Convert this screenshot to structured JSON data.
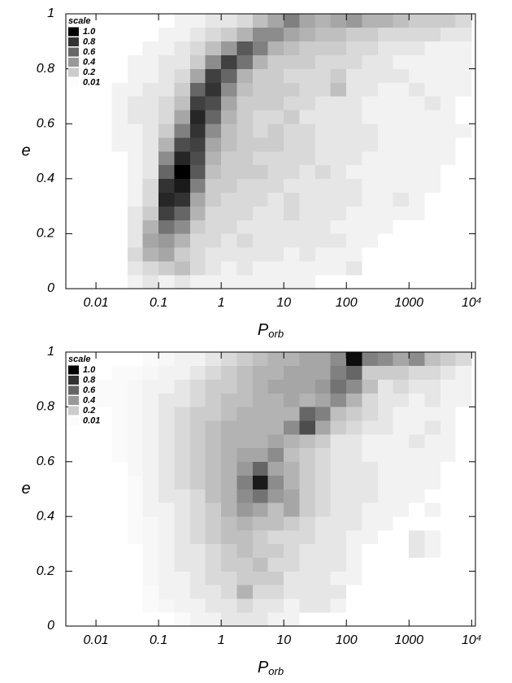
{
  "chart_data": [
    {
      "type": "heatmap",
      "xlabel": "P",
      "xlabel_subscript": "orb",
      "ylabel": "e",
      "log_x": true,
      "cmap": [
        "#ffffff",
        "#000000"
      ],
      "xlim": [
        0.0033,
        11500
      ],
      "ylim": [
        0,
        1
      ],
      "xticks": [
        0.01,
        0.1,
        1,
        10,
        100,
        1000,
        {
          "value": 10000,
          "label": "10⁴"
        }
      ],
      "yticks": [
        0,
        0.2,
        0.4,
        0.6,
        0.8,
        1
      ],
      "legend": {
        "title": "scale",
        "entries": [
          {
            "value": 1,
            "label": "1.0"
          },
          0.8,
          0.6,
          0.4,
          0.2,
          0.01
        ]
      },
      "xbins": [
        0.0032,
        0.0056,
        0.01,
        0.018,
        0.032,
        0.056,
        0.1,
        0.18,
        0.32,
        0.56,
        1,
        1.8,
        3.2,
        5.6,
        10,
        18,
        32,
        56,
        100,
        180,
        320,
        560,
        1000,
        1800,
        3200,
        5600,
        10000
      ],
      "ybins": [
        0,
        0.05,
        0.1,
        0.15,
        0.2,
        0.25,
        0.3,
        0.35,
        0.4,
        0.45,
        0.5,
        0.55,
        0.6,
        0.65,
        0.7,
        0.75,
        0.8,
        0.85,
        0.9,
        0.95,
        1
      ],
      "values": [
        [
          0,
          0,
          0,
          0,
          0.05,
          0.1,
          0.05,
          0.1,
          0.05,
          0.05,
          0.05,
          0.05,
          0.05,
          0.05,
          0.05,
          0.05,
          0,
          0,
          0,
          0,
          0,
          0,
          0,
          0,
          0,
          0
        ],
        [
          0,
          0,
          0,
          0,
          0.1,
          0.15,
          0.2,
          0.25,
          0.15,
          0.1,
          0.05,
          0.1,
          0.05,
          0.05,
          0.05,
          0.05,
          0.05,
          0.05,
          0.1,
          0,
          0,
          0,
          0,
          0,
          0,
          0
        ],
        [
          0,
          0,
          0,
          0,
          0.15,
          0.3,
          0.35,
          0.2,
          0.15,
          0.1,
          0.1,
          0.1,
          0.1,
          0.1,
          0.05,
          0.1,
          0.05,
          0.05,
          0.05,
          0,
          0,
          0,
          0,
          0,
          0,
          0
        ],
        [
          0,
          0,
          0,
          0,
          0.1,
          0.35,
          0.4,
          0.3,
          0.15,
          0.15,
          0.1,
          0.15,
          0.1,
          0.1,
          0.1,
          0.1,
          0.1,
          0.1,
          0.05,
          0.05,
          0,
          0,
          0,
          0,
          0,
          0
        ],
        [
          0,
          0,
          0,
          0,
          0.1,
          0.3,
          0.55,
          0.45,
          0.2,
          0.15,
          0.15,
          0.1,
          0.1,
          0.1,
          0.1,
          0.1,
          0.1,
          0.05,
          0.05,
          0.05,
          0.05,
          0,
          0,
          0,
          0,
          0
        ],
        [
          0,
          0,
          0,
          0,
          0.1,
          0.2,
          0.75,
          0.6,
          0.3,
          0.15,
          0.15,
          0.15,
          0.1,
          0.1,
          0.15,
          0.1,
          0.1,
          0.1,
          0.05,
          0.05,
          0.05,
          0.05,
          0.05,
          0,
          0,
          0
        ],
        [
          0,
          0,
          0,
          0,
          0.05,
          0.15,
          0.85,
          0.8,
          0.35,
          0.2,
          0.15,
          0.15,
          0.15,
          0.1,
          0.15,
          0.1,
          0.1,
          0.1,
          0.1,
          0.05,
          0.05,
          0.1,
          0.05,
          0,
          0,
          0
        ],
        [
          0,
          0,
          0,
          0,
          0.05,
          0.15,
          0.8,
          0.9,
          0.5,
          0.2,
          0.2,
          0.15,
          0.15,
          0.15,
          0.1,
          0.1,
          0.1,
          0.1,
          0.1,
          0.05,
          0.05,
          0.05,
          0.05,
          0.05,
          0,
          0
        ],
        [
          0,
          0,
          0,
          0,
          0.05,
          0.1,
          0.6,
          1,
          0.65,
          0.25,
          0.2,
          0.2,
          0.2,
          0.15,
          0.15,
          0.1,
          0.15,
          0.1,
          0.05,
          0.05,
          0.05,
          0.05,
          0.05,
          0.05,
          0,
          0
        ],
        [
          0,
          0,
          0,
          0,
          0.05,
          0.1,
          0.45,
          0.85,
          0.7,
          0.3,
          0.2,
          0.2,
          0.15,
          0.15,
          0.15,
          0.15,
          0.1,
          0.1,
          0.1,
          0.05,
          0.05,
          0.05,
          0.05,
          0.05,
          0.05,
          0
        ],
        [
          0,
          0,
          0,
          0.05,
          0.05,
          0.1,
          0.3,
          0.7,
          0.75,
          0.35,
          0.25,
          0.2,
          0.2,
          0.2,
          0.15,
          0.15,
          0.1,
          0.1,
          0.1,
          0.1,
          0.05,
          0.05,
          0.05,
          0.05,
          0.05,
          0
        ],
        [
          0,
          0,
          0,
          0.05,
          0.05,
          0.1,
          0.2,
          0.5,
          0.8,
          0.45,
          0.25,
          0.2,
          0.15,
          0.2,
          0.15,
          0.15,
          0.1,
          0.1,
          0.1,
          0.1,
          0.05,
          0.05,
          0.05,
          0.05,
          0.05,
          0.05
        ],
        [
          0,
          0,
          0,
          0.05,
          0.1,
          0.1,
          0.15,
          0.35,
          0.85,
          0.6,
          0.3,
          0.2,
          0.15,
          0.15,
          0.2,
          0.1,
          0.1,
          0.1,
          0.1,
          0.05,
          0.05,
          0.05,
          0.05,
          0.05,
          0.05,
          0
        ],
        [
          0,
          0,
          0,
          0.05,
          0.1,
          0.1,
          0.15,
          0.25,
          0.75,
          0.7,
          0.35,
          0.2,
          0.2,
          0.2,
          0.15,
          0.15,
          0.1,
          0.1,
          0.1,
          0.05,
          0.05,
          0.05,
          0.05,
          0.1,
          0.05,
          0
        ],
        [
          0,
          0,
          0,
          0.05,
          0.05,
          0.1,
          0.1,
          0.2,
          0.6,
          0.8,
          0.45,
          0.25,
          0.2,
          0.2,
          0.2,
          0.15,
          0.15,
          0.25,
          0.1,
          0.1,
          0.05,
          0.05,
          0.1,
          0.05,
          0.05,
          0.05
        ],
        [
          0,
          0,
          0,
          0,
          0.05,
          0.05,
          0.1,
          0.15,
          0.35,
          0.75,
          0.6,
          0.3,
          0.2,
          0.2,
          0.15,
          0.15,
          0.15,
          0.2,
          0.1,
          0.1,
          0.1,
          0.1,
          0.05,
          0.05,
          0.05,
          0.05
        ],
        [
          0,
          0,
          0,
          0,
          0.05,
          0.05,
          0.1,
          0.1,
          0.2,
          0.45,
          0.75,
          0.55,
          0.3,
          0.2,
          0.2,
          0.2,
          0.15,
          0.15,
          0.15,
          0.1,
          0.1,
          0.05,
          0.05,
          0.05,
          0.05,
          0.05
        ],
        [
          0,
          0,
          0,
          0,
          0,
          0.05,
          0.05,
          0.1,
          0.15,
          0.25,
          0.4,
          0.65,
          0.5,
          0.3,
          0.25,
          0.2,
          0.2,
          0.2,
          0.15,
          0.15,
          0.1,
          0.1,
          0.1,
          0.05,
          0.05,
          0.05
        ],
        [
          0,
          0,
          0,
          0,
          0,
          0,
          0.05,
          0.05,
          0.1,
          0.15,
          0.2,
          0.3,
          0.45,
          0.45,
          0.35,
          0.3,
          0.25,
          0.25,
          0.2,
          0.2,
          0.15,
          0.15,
          0.15,
          0.15,
          0.1,
          0.1
        ],
        [
          0,
          0,
          0,
          0,
          0,
          0,
          0,
          0.05,
          0.05,
          0.1,
          0.1,
          0.15,
          0.25,
          0.35,
          0.5,
          0.35,
          0.3,
          0.35,
          0.4,
          0.3,
          0.3,
          0.25,
          0.2,
          0.2,
          0.2,
          0.15
        ]
      ]
    },
    {
      "type": "heatmap",
      "xlabel": "P",
      "xlabel_subscript": "orb",
      "ylabel": "e",
      "log_x": true,
      "cmap": [
        "#ffffff",
        "#000000"
      ],
      "xlim": [
        0.0033,
        11500
      ],
      "ylim": [
        0,
        1
      ],
      "xticks": [
        0.01,
        0.1,
        1,
        10,
        100,
        1000,
        {
          "value": 10000,
          "label": "10⁴"
        }
      ],
      "yticks": [
        0,
        0.2,
        0.4,
        0.6,
        0.8,
        1
      ],
      "legend": {
        "title": "scale",
        "entries": [
          {
            "value": 1,
            "label": "1.0"
          },
          0.8,
          0.6,
          0.4,
          0.2,
          0.01
        ]
      },
      "xbins": [
        0.0032,
        0.0056,
        0.01,
        0.018,
        0.032,
        0.056,
        0.1,
        0.18,
        0.32,
        0.56,
        1,
        1.8,
        3.2,
        5.6,
        10,
        18,
        32,
        56,
        100,
        180,
        320,
        560,
        1000,
        1800,
        3200,
        5600,
        10000
      ],
      "ybins": [
        0,
        0.05,
        0.1,
        0.15,
        0.2,
        0.25,
        0.3,
        0.35,
        0.4,
        0.45,
        0.5,
        0.55,
        0.6,
        0.65,
        0.7,
        0.75,
        0.8,
        0.85,
        0.9,
        0.95,
        1
      ],
      "values": [
        [
          0,
          0,
          0,
          0,
          0,
          0,
          0,
          0.02,
          0.05,
          0.05,
          0.1,
          0.1,
          0.1,
          0.05,
          0.05,
          0,
          0,
          0,
          0,
          0,
          0,
          0,
          0,
          0,
          0,
          0
        ],
        [
          0,
          0,
          0,
          0,
          0,
          0.02,
          0.03,
          0.05,
          0.05,
          0.1,
          0.1,
          0.15,
          0.1,
          0.1,
          0.05,
          0.1,
          0.1,
          0.05,
          0,
          0,
          0,
          0,
          0,
          0,
          0,
          0
        ],
        [
          0,
          0,
          0,
          0,
          0,
          0.02,
          0.05,
          0.05,
          0.1,
          0.1,
          0.15,
          0.3,
          0.15,
          0.15,
          0.1,
          0.1,
          0.1,
          0.1,
          0,
          0,
          0,
          0,
          0,
          0,
          0,
          0
        ],
        [
          0,
          0,
          0,
          0,
          0,
          0.03,
          0.05,
          0.05,
          0.1,
          0.15,
          0.15,
          0.2,
          0.2,
          0.2,
          0.1,
          0.1,
          0.1,
          0.05,
          0.05,
          0,
          0,
          0,
          0,
          0,
          0,
          0
        ],
        [
          0,
          0,
          0,
          0,
          0,
          0.03,
          0.05,
          0.1,
          0.1,
          0.15,
          0.2,
          0.2,
          0.25,
          0.15,
          0.15,
          0.1,
          0.1,
          0.1,
          0.05,
          0,
          0,
          0,
          0,
          0,
          0,
          0
        ],
        [
          0,
          0,
          0,
          0,
          0,
          0.03,
          0.05,
          0.1,
          0.1,
          0.15,
          0.2,
          0.25,
          0.2,
          0.2,
          0.15,
          0.1,
          0.1,
          0.1,
          0.05,
          0,
          0,
          0,
          0.1,
          0.05,
          0,
          0
        ],
        [
          0,
          0,
          0,
          0,
          0.02,
          0.03,
          0.05,
          0.1,
          0.15,
          0.2,
          0.25,
          0.25,
          0.2,
          0.15,
          0.15,
          0.15,
          0.1,
          0.1,
          0.05,
          0.05,
          0,
          0,
          0.1,
          0.05,
          0,
          0
        ],
        [
          0,
          0,
          0,
          0,
          0.02,
          0.03,
          0.05,
          0.1,
          0.15,
          0.2,
          0.25,
          0.3,
          0.25,
          0.25,
          0.2,
          0.15,
          0.1,
          0.1,
          0.1,
          0.05,
          0.05,
          0,
          0,
          0,
          0,
          0
        ],
        [
          0,
          0,
          0,
          0,
          0.02,
          0.05,
          0.05,
          0.1,
          0.15,
          0.2,
          0.3,
          0.4,
          0.35,
          0.25,
          0.35,
          0.2,
          0.15,
          0.1,
          0.1,
          0.05,
          0.05,
          0.05,
          0,
          0.05,
          0,
          0
        ],
        [
          0,
          0,
          0,
          0,
          0.02,
          0.05,
          0.1,
          0.1,
          0.15,
          0.25,
          0.3,
          0.45,
          0.55,
          0.4,
          0.35,
          0.2,
          0.15,
          0.1,
          0.1,
          0.1,
          0.05,
          0.05,
          0.05,
          0,
          0,
          0
        ],
        [
          0,
          0,
          0,
          0,
          0.02,
          0.05,
          0.1,
          0.15,
          0.2,
          0.25,
          0.3,
          0.5,
          0.9,
          0.45,
          0.3,
          0.2,
          0.15,
          0.1,
          0.1,
          0.1,
          0.05,
          0.05,
          0.05,
          0.05,
          0,
          0
        ],
        [
          0,
          0,
          0,
          0,
          0.03,
          0.05,
          0.1,
          0.15,
          0.2,
          0.25,
          0.3,
          0.4,
          0.6,
          0.35,
          0.3,
          0.2,
          0.15,
          0.1,
          0.1,
          0.1,
          0.05,
          0.05,
          0.05,
          0.05,
          0,
          0
        ],
        [
          0,
          0,
          0,
          0.02,
          0.03,
          0.05,
          0.1,
          0.15,
          0.2,
          0.25,
          0.3,
          0.35,
          0.35,
          0.45,
          0.25,
          0.2,
          0.15,
          0.1,
          0.1,
          0.05,
          0.05,
          0.05,
          0.05,
          0.05,
          0.05,
          0
        ],
        [
          0,
          0,
          0,
          0.02,
          0.03,
          0.05,
          0.1,
          0.15,
          0.2,
          0.25,
          0.3,
          0.3,
          0.3,
          0.35,
          0.3,
          0.25,
          0.2,
          0.1,
          0.1,
          0.05,
          0.05,
          0.05,
          0.1,
          0.05,
          0.05,
          0
        ],
        [
          0,
          0,
          0,
          0.02,
          0.03,
          0.05,
          0.1,
          0.15,
          0.2,
          0.25,
          0.3,
          0.3,
          0.3,
          0.3,
          0.45,
          0.7,
          0.35,
          0.2,
          0.15,
          0.1,
          0.1,
          0.05,
          0.05,
          0.1,
          0.05,
          0
        ],
        [
          0,
          0,
          0,
          0.02,
          0.03,
          0.05,
          0.1,
          0.15,
          0.2,
          0.2,
          0.25,
          0.3,
          0.3,
          0.3,
          0.3,
          0.6,
          0.5,
          0.25,
          0.2,
          0.15,
          0.1,
          0.05,
          0.05,
          0.05,
          0.05,
          0
        ],
        [
          0,
          0,
          0.02,
          0.02,
          0.03,
          0.05,
          0.1,
          0.1,
          0.15,
          0.2,
          0.25,
          0.25,
          0.3,
          0.3,
          0.35,
          0.3,
          0.35,
          0.45,
          0.3,
          0.15,
          0.1,
          0.1,
          0.05,
          0.1,
          0.05,
          0.05
        ],
        [
          0,
          0,
          0.02,
          0.02,
          0.03,
          0.05,
          0.05,
          0.1,
          0.15,
          0.2,
          0.2,
          0.25,
          0.3,
          0.35,
          0.35,
          0.35,
          0.4,
          0.55,
          0.45,
          0.25,
          0.1,
          0.15,
          0.1,
          0.1,
          0.05,
          0.05
        ],
        [
          0,
          0,
          0,
          0.02,
          0.02,
          0.03,
          0.05,
          0.05,
          0.1,
          0.15,
          0.2,
          0.25,
          0.3,
          0.3,
          0.35,
          0.35,
          0.35,
          0.5,
          0.6,
          0.2,
          0.2,
          0.2,
          0.15,
          0.15,
          0.1,
          0.05
        ],
        [
          0,
          0,
          0,
          0,
          0,
          0.02,
          0.03,
          0.05,
          0.05,
          0.1,
          0.15,
          0.2,
          0.25,
          0.3,
          0.3,
          0.35,
          0.35,
          0.45,
          0.95,
          0.5,
          0.45,
          0.35,
          0.45,
          0.25,
          0.2,
          0.15
        ]
      ]
    }
  ]
}
